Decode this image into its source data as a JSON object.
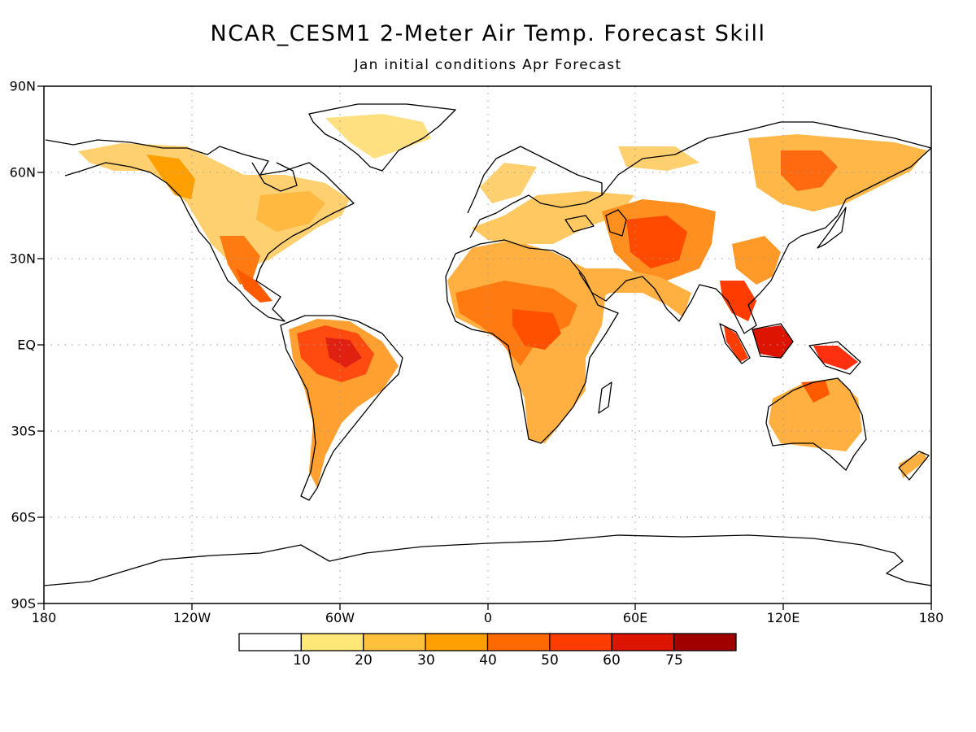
{
  "title": "NCAR_CESM1 2-Meter Air Temp. Forecast Skill",
  "subtitle": "Jan initial conditions  Apr Forecast",
  "y_ticks": [
    "90N",
    "60N",
    "30N",
    "EQ",
    "30S",
    "60S",
    "90S"
  ],
  "x_ticks": [
    "180",
    "120W",
    "60W",
    "0",
    "60E",
    "120E",
    "180"
  ],
  "colorbar": {
    "labels": [
      "10",
      "20",
      "30",
      "40",
      "50",
      "60",
      "75"
    ],
    "colors": [
      "#ffffff",
      "#ffe878",
      "#ffc03c",
      "#ffa000",
      "#ff6a00",
      "#ff3c00",
      "#dc1400",
      "#a00000"
    ]
  }
}
